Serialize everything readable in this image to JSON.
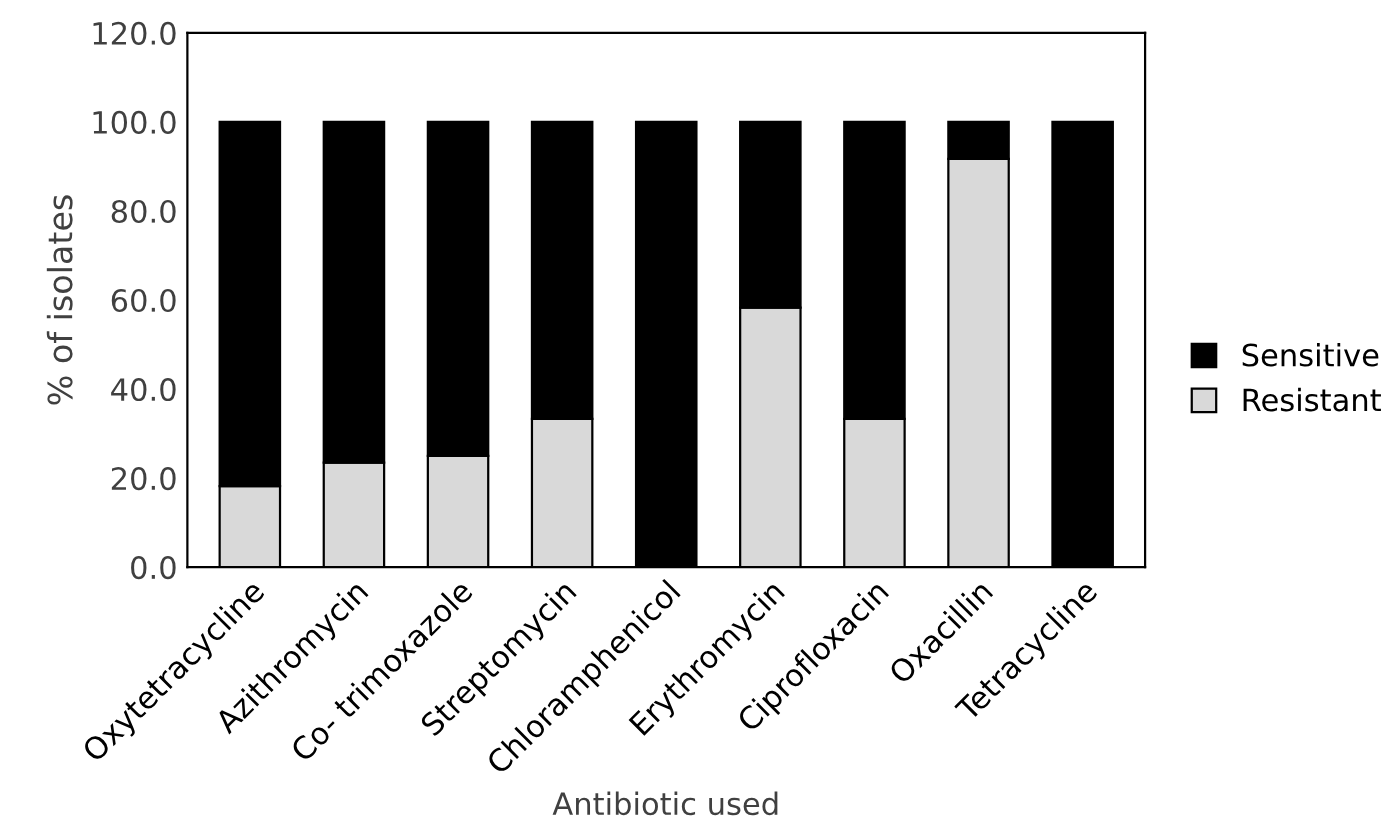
{
  "chart_data": {
    "type": "bar",
    "stacked": true,
    "xlabel": "Antibiotic used",
    "ylabel": "% of isolates",
    "categories": [
      "Oxytetracycline",
      "Azithromycin",
      "Co- trimoxazole",
      "Streptomycin",
      "Chloramphenicol",
      "Erythromycin",
      "Ciprofloxacin",
      "Oxacillin",
      "Tetracycline"
    ],
    "series": [
      {
        "name": "Resistant",
        "color": "#d9d9d9",
        "values": [
          18.2,
          23.5,
          25.0,
          33.3,
          0,
          58.3,
          33.3,
          91.7,
          0
        ]
      },
      {
        "name": "Sensitive",
        "color": "#000000",
        "values": [
          81.8,
          76.5,
          75.0,
          66.7,
          100,
          41.7,
          66.7,
          8.3,
          100
        ]
      }
    ],
    "ylim": [
      0,
      120
    ],
    "yticks": [
      {
        "value": 0,
        "label": "0.0"
      },
      {
        "value": 20,
        "label": "20.0"
      },
      {
        "value": 40,
        "label": "40.0"
      },
      {
        "value": 60,
        "label": "60.0"
      },
      {
        "value": 80,
        "label": "80.0"
      },
      {
        "value": 100,
        "label": "100.0"
      },
      {
        "value": 120,
        "label": "120.0"
      }
    ],
    "grid": false,
    "legend": "right"
  }
}
